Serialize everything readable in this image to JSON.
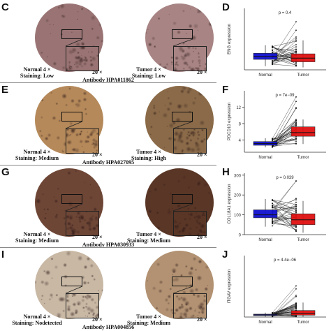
{
  "panels": [
    {
      "letters": [
        "C",
        "D"
      ],
      "antibody": "Antibody HPA011862",
      "normal": {
        "mag": "Normal 4 ×",
        "staining": "Staining: Low",
        "zoom": "20 ×"
      },
      "tumor": {
        "mag": "Tumor 4 ×",
        "staining": "Staining: Low",
        "zoom": "20 ×"
      },
      "tissue_colors": {
        "normal": "#9a7474",
        "tumor": "#a88484"
      }
    },
    {
      "letters": [
        "E",
        "F"
      ],
      "antibody": "Antibody HPA027095",
      "normal": {
        "mag": "Normal 4 ×",
        "staining": "Staining: Medium",
        "zoom": "20 ×"
      },
      "tumor": {
        "mag": "Tumor 4 ×",
        "staining": "Staining: High",
        "zoom": "20 ×"
      },
      "tissue_colors": {
        "normal": "#b5895a",
        "tumor": "#8a6a48"
      }
    },
    {
      "letters": [
        "G",
        "H"
      ],
      "antibody": "Antibody HPA030933",
      "normal": {
        "mag": "Normal 4 ×",
        "staining": "Staining: Medium",
        "zoom": "20 ×"
      },
      "tumor": {
        "mag": "Tumor 4 ×",
        "staining": "Staining: Medium",
        "zoom": "20 ×"
      },
      "tissue_colors": {
        "normal": "#6e4636",
        "tumor": "#5a3626"
      }
    },
    {
      "letters": [
        "I",
        "J"
      ],
      "antibody": "Antibody HPA004856",
      "normal": {
        "mag": "Normal 4 ×",
        "staining": "Staining: Nodetected",
        "zoom": "20 ×"
      },
      "tumor": {
        "mag": "Tumor 4 ×",
        "staining": "Staining: Medium",
        "zoom": "20 ×"
      },
      "tissue_colors": {
        "normal": "#c8b8a4",
        "tumor": "#b29272"
      }
    }
  ],
  "chart_data": [
    {
      "type": "box",
      "ylabel": "ENG expression",
      "pvalue": "p = 0.4",
      "categories": [
        "Normal",
        "Tumor"
      ],
      "yticks": [],
      "ylim": [
        0,
        100
      ],
      "colors": [
        "#1010d0",
        "#e01010"
      ],
      "normal": {
        "q1": 17,
        "median": 22,
        "q3": 27,
        "min": 6,
        "max": 40
      },
      "tumor": {
        "q1": 13,
        "median": 19,
        "q3": 26,
        "min": 4,
        "max": 48
      }
    },
    {
      "type": "box",
      "ylabel": "PDCD10 expression",
      "pvalue": "p = 7e−09",
      "categories": [
        "Normal",
        "Tumor"
      ],
      "yticks": [
        4,
        8,
        12
      ],
      "ylim": [
        1,
        16
      ],
      "colors": [
        "#1010d0",
        "#e01010"
      ],
      "normal": {
        "q1": 2.7,
        "median": 3.1,
        "q3": 3.6,
        "min": 2.2,
        "max": 4.4
      },
      "tumor": {
        "q1": 4.9,
        "median": 5.8,
        "q3": 7.2,
        "min": 3.0,
        "max": 9.0
      }
    },
    {
      "type": "box",
      "ylabel": "COL18A1 expression",
      "pvalue": "p = 0.039",
      "categories": [
        "Normal",
        "Tumor"
      ],
      "yticks": [
        0,
        100,
        200,
        300
      ],
      "ylim": [
        0,
        310
      ],
      "colors": [
        "#1010d0",
        "#e01010"
      ],
      "normal": {
        "q1": 85,
        "median": 100,
        "q3": 125,
        "min": 40,
        "max": 180
      },
      "tumor": {
        "q1": 50,
        "median": 75,
        "q3": 105,
        "min": 10,
        "max": 170
      }
    },
    {
      "type": "box",
      "ylabel": "ITGAV expression",
      "pvalue": "p = 4.4e−06",
      "categories": [
        "Normal",
        "Tumor"
      ],
      "yticks": [],
      "ylim": [
        0,
        85
      ],
      "colors": [
        "#1010d0",
        "#e01010"
      ],
      "normal": {
        "q1": 2,
        "median": 3,
        "q3": 4,
        "min": 0.5,
        "max": 6
      },
      "tumor": {
        "q1": 2.5,
        "median": 5,
        "q3": 9,
        "min": 0.5,
        "max": 20
      }
    }
  ]
}
